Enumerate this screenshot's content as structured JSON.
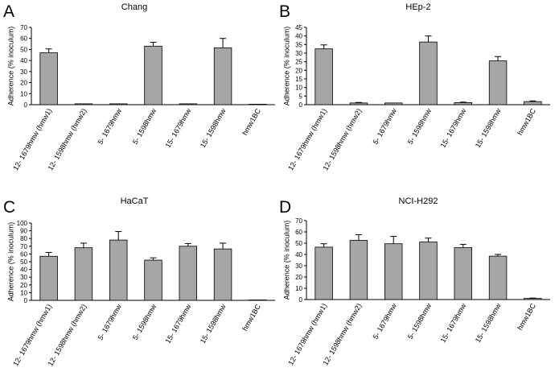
{
  "figure_title": "Adherence of strains to epithelial cell lines",
  "chart_data": [
    {
      "type": "bar",
      "panel_letter": "A",
      "title": "Chang",
      "xlabel": "",
      "ylabel": "Adherence (% inoculum)",
      "ylim": [
        0,
        70
      ],
      "yticks": [
        0,
        10,
        20,
        30,
        40,
        50,
        60,
        70
      ],
      "categories": [
        "12- 1679hmw (hmw1)",
        "12- 1598hmw (hmw2)",
        "5- 1679hmw",
        "5- 1598hmw",
        "15- 1679hmw",
        "15- 1598hmw",
        "hmw1BC"
      ],
      "values": [
        47,
        0.8,
        0.8,
        53,
        0.8,
        51.5,
        0.4
      ],
      "errors": [
        3.5,
        0,
        0,
        3.5,
        0,
        8.5,
        0
      ],
      "bar_color": "#a6a6a6"
    },
    {
      "type": "bar",
      "panel_letter": "B",
      "title": "HEp-2",
      "xlabel": "",
      "ylabel": "Adherence (% inoculum)",
      "ylim": [
        0,
        45
      ],
      "yticks": [
        0,
        5,
        10,
        15,
        20,
        25,
        30,
        35,
        40,
        45
      ],
      "categories": [
        "12- 1679hmw (hmw1)",
        "12- 1598hmw (hmw2)",
        "5- 1679hmw",
        "5- 1598hmw",
        "15- 1679hmw",
        "15- 1598hmw",
        "hmw1BC"
      ],
      "values": [
        32.5,
        1,
        1,
        36.5,
        1.2,
        25.5,
        1.8
      ],
      "errors": [
        2.3,
        0.3,
        0,
        3.5,
        0.3,
        2.5,
        0.4
      ],
      "bar_color": "#a6a6a6"
    },
    {
      "type": "bar",
      "panel_letter": "C",
      "title": "HaCaT",
      "xlabel": "",
      "ylabel": "Adherence (% inoculum)",
      "ylim": [
        0,
        100
      ],
      "yticks": [
        0,
        10,
        20,
        30,
        40,
        50,
        60,
        70,
        80,
        90,
        100
      ],
      "categories": [
        "12- 1679hmw (hmw1)",
        "12- 1598hmw (hmw2)",
        "5- 1679hmw",
        "5- 1598hmw",
        "15- 1679hmw",
        "15- 1598hmw",
        "hmw1BC"
      ],
      "values": [
        57,
        68,
        78,
        52,
        70,
        66.5,
        0.5
      ],
      "errors": [
        5,
        6,
        11,
        3,
        3.5,
        7.5,
        0
      ],
      "bar_color": "#a6a6a6"
    },
    {
      "type": "bar",
      "panel_letter": "D",
      "title": "NCI-H292",
      "xlabel": "",
      "ylabel": "Adherence (% inoculum)",
      "ylim": [
        0,
        70
      ],
      "yticks": [
        0,
        10,
        20,
        30,
        40,
        50,
        60,
        70
      ],
      "categories": [
        "12- 1679hmw (hmw1)",
        "12- 1598hmw (hmw2)",
        "5- 1679hmw",
        "5- 1598hmw",
        "15- 1679hmw",
        "15- 1598hmw",
        "hmw1BC"
      ],
      "values": [
        46.5,
        52.5,
        49.5,
        51,
        46,
        38.5,
        1
      ],
      "errors": [
        3,
        5,
        6.5,
        3.5,
        3,
        1.5,
        0.3
      ],
      "bar_color": "#a6a6a6"
    }
  ]
}
